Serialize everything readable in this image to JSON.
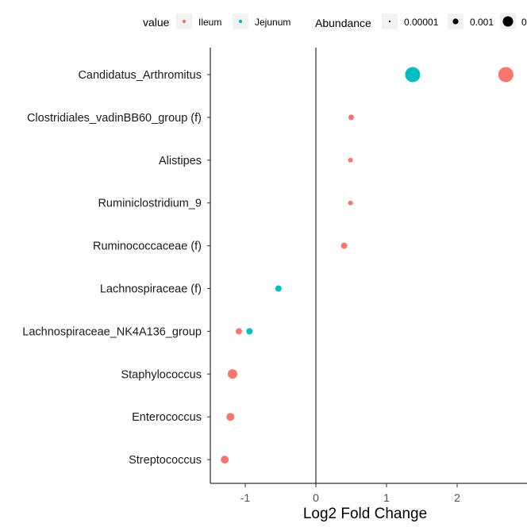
{
  "legend": {
    "color_title": "value",
    "color_items": [
      {
        "label": "Ileum",
        "color": "#F8766D"
      },
      {
        "label": "Jejunum",
        "color": "#00BFC4"
      }
    ],
    "size_title": "Abundance",
    "size_items": [
      {
        "label": "0.00001",
        "abundance": 1e-05
      },
      {
        "label": "0.001",
        "abundance": 0.001
      },
      {
        "label": "0",
        "abundance": 0.1
      }
    ]
  },
  "chart_data": {
    "type": "scatter",
    "title": "",
    "xlabel": "Log2 Fold Change",
    "ylabel": "",
    "xlim": [
      -1.5,
      2.9
    ],
    "x_ticks": [
      -1,
      0,
      1,
      2
    ],
    "x_tick_labels": [
      "-1",
      "0",
      "1",
      "2"
    ],
    "reference_line_x": 0,
    "grid": false,
    "legend_position": "top",
    "categories": [
      "Candidatus_Arthromitus",
      "Clostridiales_vadinBB60_group (f)",
      "Alistipes",
      "Ruminiclostridium_9",
      "Ruminococcaceae (f)",
      "Lachnospiraceae (f)",
      "Lachnospiraceae_NK4A136_group",
      "Staphylococcus",
      "Enterococcus",
      "Streptococcus"
    ],
    "series": [
      {
        "name": "Ileum",
        "color": "#F8766D",
        "points": [
          {
            "category": "Candidatus_Arthromitus",
            "x": 2.69,
            "size_level": 9.5
          },
          {
            "category": "Clostridiales_vadinBB60_group (f)",
            "x": 0.5,
            "size_level": 3.5
          },
          {
            "category": "Alistipes",
            "x": 0.49,
            "size_level": 3.0
          },
          {
            "category": "Ruminiclostridium_9",
            "x": 0.49,
            "size_level": 3.0
          },
          {
            "category": "Ruminococcaceae (f)",
            "x": 0.4,
            "size_level": 4.0
          },
          {
            "category": "Lachnospiraceae_NK4A136_group",
            "x": -1.09,
            "size_level": 4.0
          },
          {
            "category": "Staphylococcus",
            "x": -1.18,
            "size_level": 6.0
          },
          {
            "category": "Enterococcus",
            "x": -1.21,
            "size_level": 5.0
          },
          {
            "category": "Streptococcus",
            "x": -1.29,
            "size_level": 5.0
          }
        ]
      },
      {
        "name": "Jejunum",
        "color": "#00BFC4",
        "points": [
          {
            "category": "Candidatus_Arthromitus",
            "x": 1.37,
            "size_level": 9.5
          },
          {
            "category": "Lachnospiraceae (f)",
            "x": -0.53,
            "size_level": 4.0
          },
          {
            "category": "Lachnospiraceae_NK4A136_group",
            "x": -0.94,
            "size_level": 4.0
          }
        ]
      }
    ]
  }
}
